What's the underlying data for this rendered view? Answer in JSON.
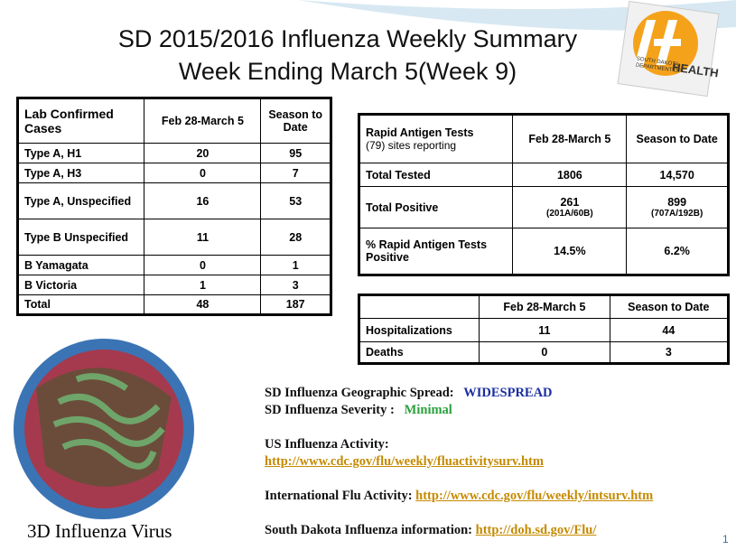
{
  "header": {
    "title": [
      "SD 2015/2016 Influenza Weekly Summary",
      "Week Ending March 5(Week 9)"
    ],
    "logo": [
      "SOUTH DAKOTA",
      "DEPARTMENT OF",
      "HEALTH"
    ]
  },
  "lab_table": {
    "columns": [
      "Lab Confirmed Cases",
      "Feb 28-March 5",
      "Season to Date"
    ],
    "rows": [
      [
        "Type A, H1",
        20,
        95
      ],
      [
        "Type A, H3",
        0,
        7
      ],
      [
        "Type A, Unspecified",
        16,
        53
      ],
      [
        "Type B Unspecified",
        11,
        28
      ],
      [
        "B Yamagata",
        0,
        1
      ],
      [
        "B Victoria",
        1,
        3
      ],
      [
        "Total",
        48,
        187
      ]
    ]
  },
  "rapid_table": {
    "columns": [
      [
        "Rapid Antigen Tests",
        "(79) sites reporting"
      ],
      [
        "Feb 28-March 5"
      ],
      [
        "Season to Date"
      ]
    ],
    "rows": [
      [
        [
          "Total Tested"
        ],
        [
          "1806"
        ],
        [
          "14,570"
        ]
      ],
      [
        [
          "Total Positive"
        ],
        [
          "261",
          "(201A/60B)"
        ],
        [
          "899",
          "(707A/192B)"
        ]
      ],
      [
        [
          "% Rapid Antigen Tests Positive"
        ],
        [
          "14.5%"
        ],
        [
          "6.2%"
        ]
      ]
    ]
  },
  "hosp_table": {
    "columns": [
      "",
      "Feb 28-March 5",
      "Season to Date"
    ],
    "rows": [
      [
        "Hospitalizations",
        11,
        44
      ],
      [
        "Deaths",
        0,
        3
      ]
    ]
  },
  "info": {
    "spread": {
      "label": "SD Influenza Geographic Spread:",
      "value": "WIDESPREAD"
    },
    "severity": {
      "label": "SD Influenza Severity :",
      "value": "Minimal"
    },
    "us": {
      "label": "US Influenza Activity:",
      "link": "http://www.cdc.gov/flu/weekly/fluactivitysurv.htm"
    },
    "intl": {
      "label": "International Flu Activity:",
      "link": "http://www.cdc.gov/flu/weekly/intsurv.htm"
    },
    "sd": {
      "label": "South Dakota Influenza information:",
      "link": "http://doh.sd.gov/Flu/"
    }
  },
  "image_caption": "3D Influenza Virus",
  "slide_number": "1"
}
